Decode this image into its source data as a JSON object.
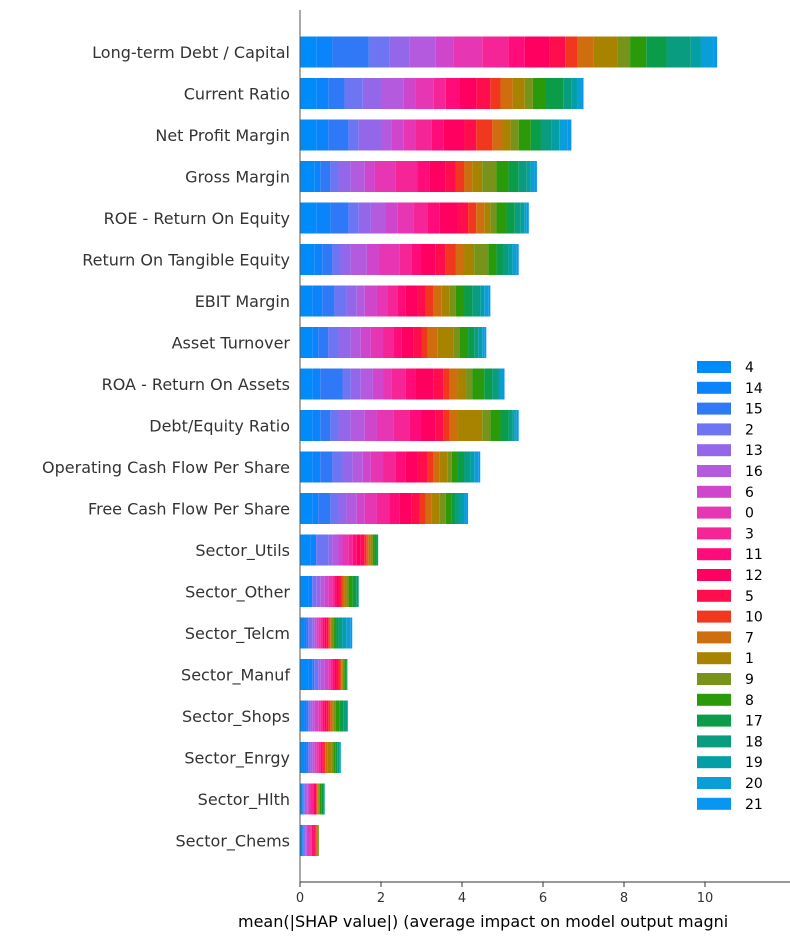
{
  "chart_data": {
    "type": "bar",
    "orientation": "horizontal",
    "stacked": true,
    "title": "",
    "xlabel": "mean(|SHAP value|) (average impact on model output magni",
    "ylabel": "",
    "xlim": [
      0,
      12
    ],
    "xticks": [
      "0",
      "2",
      "4",
      "6",
      "8",
      "10"
    ],
    "grid": false,
    "legend_position": "bottom-right",
    "categories": [
      "Long-term Debt / Capital",
      "Current Ratio",
      "Net Profit Margin",
      "Gross Margin",
      "ROE - Return On Equity",
      "Return On Tangible Equity",
      "EBIT Margin",
      "Asset Turnover",
      "ROA - Return On Assets",
      "Debt/Equity Ratio",
      "Operating Cash Flow Per Share",
      "Free Cash Flow Per Share",
      "Sector_Utils",
      "Sector_Other",
      "Sector_Telcm",
      "Sector_Manuf",
      "Sector_Shops",
      "Sector_Enrgy",
      "Sector_Hlth",
      "Sector_Chems"
    ],
    "series": [
      {
        "name": "4",
        "color": "#008bfb",
        "values": [
          0.4,
          0.4,
          0.4,
          0.35,
          0.4,
          0.35,
          0.3,
          0.3,
          0.3,
          0.3,
          0.3,
          0.3,
          0.25,
          0.2,
          0.1,
          0.2,
          0.1,
          0.1,
          0.05,
          0.05
        ]
      },
      {
        "name": "14",
        "color": "#0a83fb",
        "values": [
          0.4,
          0.3,
          0.3,
          0.15,
          0.35,
          0.2,
          0.25,
          0.15,
          0.2,
          0.2,
          0.2,
          0.15,
          0.15,
          0.1,
          0.05,
          0.1,
          0.05,
          0.05,
          0.02,
          0.02
        ]
      },
      {
        "name": "15",
        "color": "#2f79f6",
        "values": [
          0.9,
          0.4,
          0.5,
          0.25,
          0.45,
          0.25,
          0.3,
          0.25,
          0.55,
          0.25,
          0.3,
          0.3,
          0.0,
          0.0,
          0.05,
          0.05,
          0.05,
          0.05,
          0.02,
          0.02
        ]
      },
      {
        "name": "2",
        "color": "#6e75f2",
        "values": [
          0.5,
          0.45,
          0.25,
          0.2,
          0.25,
          0.2,
          0.3,
          0.25,
          0.2,
          0.2,
          0.25,
          0.2,
          0.3,
          0.1,
          0.1,
          0.1,
          0.05,
          0.05,
          0.03,
          0.02
        ]
      },
      {
        "name": "13",
        "color": "#9467ea",
        "values": [
          0.5,
          0.45,
          0.55,
          0.3,
          0.3,
          0.25,
          0.25,
          0.3,
          0.25,
          0.3,
          0.25,
          0.2,
          0.1,
          0.1,
          0.05,
          0.05,
          0.05,
          0.05,
          0.03,
          0.03
        ]
      },
      {
        "name": "16",
        "color": "#b45ade",
        "values": [
          0.65,
          0.55,
          0.25,
          0.35,
          0.35,
          0.4,
          0.2,
          0.25,
          0.3,
          0.35,
          0.25,
          0.25,
          0.15,
          0.1,
          0.05,
          0.1,
          0.05,
          0.05,
          0.03,
          0.03
        ]
      },
      {
        "name": "6",
        "color": "#cf45cc",
        "values": [
          0.45,
          0.3,
          0.3,
          0.25,
          0.3,
          0.3,
          0.3,
          0.25,
          0.25,
          0.3,
          0.2,
          0.2,
          0.1,
          0.1,
          0.05,
          0.1,
          0.1,
          0.05,
          0.04,
          0.04
        ]
      },
      {
        "name": "0",
        "color": "#e636b4",
        "values": [
          0.7,
          0.45,
          0.3,
          0.5,
          0.4,
          0.5,
          0.25,
          0.3,
          0.2,
          0.4,
          0.3,
          0.3,
          0.15,
          0.1,
          0.05,
          0.05,
          0.05,
          0.05,
          0.04,
          0.04
        ]
      },
      {
        "name": "3",
        "color": "#f52597",
        "values": [
          0.65,
          0.3,
          0.4,
          0.55,
          0.35,
          0.3,
          0.25,
          0.25,
          0.35,
          0.4,
          0.3,
          0.3,
          0.1,
          0.05,
          0.05,
          0.05,
          0.05,
          0.05,
          0.04,
          0.04
        ]
      },
      {
        "name": "11",
        "color": "#ff0b7a",
        "values": [
          0.4,
          0.35,
          0.3,
          0.3,
          0.3,
          0.25,
          0.2,
          0.2,
          0.25,
          0.3,
          0.25,
          0.25,
          0.1,
          0.05,
          0.05,
          0.05,
          0.05,
          0.03,
          0.04,
          0.04
        ]
      },
      {
        "name": "12",
        "color": "#ff0061",
        "values": [
          0.6,
          0.4,
          0.5,
          0.4,
          0.45,
          0.35,
          0.3,
          0.3,
          0.45,
          0.35,
          0.3,
          0.3,
          0.1,
          0.05,
          0.05,
          0.05,
          0.05,
          0.03,
          0.03,
          0.03
        ]
      },
      {
        "name": "5",
        "color": "#ff0d4d",
        "values": [
          0.4,
          0.35,
          0.3,
          0.25,
          0.25,
          0.25,
          0.2,
          0.2,
          0.25,
          0.2,
          0.25,
          0.2,
          0.1,
          0.05,
          0.05,
          0.05,
          0.05,
          0.03,
          0.03,
          0.03
        ]
      },
      {
        "name": "10",
        "color": "#f2371f",
        "values": [
          0.3,
          0.25,
          0.4,
          0.2,
          0.2,
          0.25,
          0.2,
          0.15,
          0.15,
          0.15,
          0.15,
          0.15,
          0.05,
          0.05,
          0.03,
          0.05,
          0.05,
          0.03,
          0.02,
          0.02
        ]
      },
      {
        "name": "7",
        "color": "#cf6e0f",
        "values": [
          0.4,
          0.3,
          0.25,
          0.2,
          0.2,
          0.2,
          0.2,
          0.25,
          0.2,
          0.2,
          0.15,
          0.15,
          0.05,
          0.05,
          0.03,
          0.03,
          0.05,
          0.05,
          0.02,
          0.02
        ]
      },
      {
        "name": "1",
        "color": "#a88300",
        "values": [
          0.6,
          0.3,
          0.2,
          0.25,
          0.15,
          0.25,
          0.2,
          0.4,
          0.2,
          0.6,
          0.2,
          0.2,
          0.05,
          0.05,
          0.03,
          0.03,
          0.03,
          0.1,
          0.02,
          0.02
        ]
      },
      {
        "name": "9",
        "color": "#77931a",
        "values": [
          0.3,
          0.2,
          0.2,
          0.35,
          0.15,
          0.35,
          0.15,
          0.15,
          0.15,
          0.2,
          0.1,
          0.15,
          0.05,
          0.05,
          0.05,
          0.03,
          0.05,
          0.05,
          0.03,
          0.01
        ]
      },
      {
        "name": "8",
        "color": "#2a9a0a",
        "values": [
          0.4,
          0.3,
          0.3,
          0.3,
          0.25,
          0.2,
          0.2,
          0.2,
          0.3,
          0.25,
          0.15,
          0.15,
          0.05,
          0.1,
          0.05,
          0.05,
          0.1,
          0.05,
          0.05,
          0.01
        ]
      },
      {
        "name": "17",
        "color": "#0b9c4a",
        "values": [
          0.5,
          0.45,
          0.25,
          0.25,
          0.2,
          0.15,
          0.2,
          0.15,
          0.2,
          0.2,
          0.15,
          0.1,
          0.05,
          0.1,
          0.05,
          0.03,
          0.1,
          0.05,
          0.05,
          0.0
        ]
      },
      {
        "name": "18",
        "color": "#0a9c7e",
        "values": [
          0.6,
          0.2,
          0.25,
          0.2,
          0.15,
          0.15,
          0.2,
          0.1,
          0.15,
          0.1,
          0.15,
          0.1,
          0.03,
          0.05,
          0.1,
          0.0,
          0.1,
          0.05,
          0.02,
          0.0
        ]
      },
      {
        "name": "19",
        "color": "#039ea6",
        "values": [
          0.25,
          0.15,
          0.2,
          0.1,
          0.1,
          0.1,
          0.1,
          0.1,
          0.05,
          0.05,
          0.1,
          0.1,
          0.0,
          0.0,
          0.1,
          0.0,
          0.0,
          0.02,
          0.0,
          0.0
        ]
      },
      {
        "name": "20",
        "color": "#0a9ed8",
        "values": [
          0.3,
          0.1,
          0.2,
          0.1,
          0.05,
          0.1,
          0.1,
          0.05,
          0.05,
          0.05,
          0.1,
          0.05,
          0.0,
          0.0,
          0.1,
          0.0,
          0.0,
          0.02,
          0.0,
          0.0
        ]
      },
      {
        "name": "21",
        "color": "#0996f3",
        "values": [
          0.1,
          0.05,
          0.1,
          0.05,
          0.05,
          0.05,
          0.05,
          0.05,
          0.05,
          0.05,
          0.05,
          0.05,
          0.0,
          0.0,
          0.05,
          0.0,
          0.0,
          0.0,
          0.0,
          0.0
        ]
      }
    ]
  }
}
